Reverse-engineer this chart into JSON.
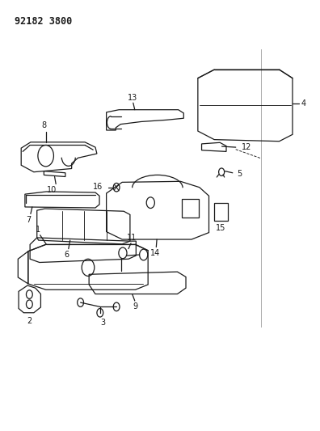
{
  "title_code": "92182 3800",
  "bg_color": "#ffffff",
  "line_color": "#1a1a1a",
  "fig_width": 3.96,
  "fig_height": 5.33,
  "dpi": 100
}
